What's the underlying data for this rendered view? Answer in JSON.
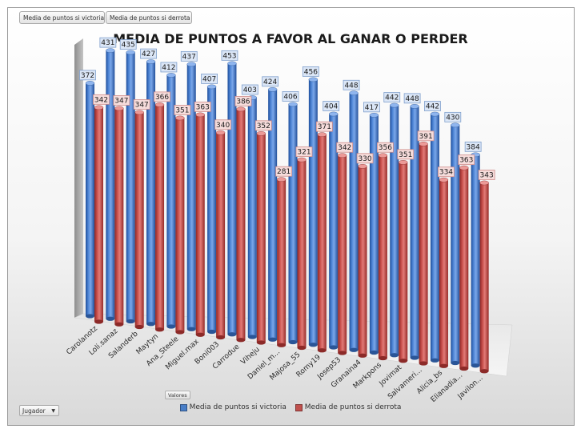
{
  "filter_buttons": [
    "Media de puntos si victoria",
    "Media de puntos si derrota"
  ],
  "axis_field_button": "Valores",
  "row_field_button": "Jugador",
  "colors": {
    "victoria": "#4a7fc8",
    "derrota": "#c0504d"
  },
  "chart_data": {
    "type": "bar",
    "title": "MEDIA DE PUNTOS A FAVOR AL GANAR O PERDER",
    "xlabel": "",
    "ylabel": "",
    "ylim": [
      0,
      460
    ],
    "categories": [
      "Carolanotz",
      "Loli.sanaz",
      "Salanderb",
      "Maytyn",
      "Ana_Steele",
      "Miguel.max",
      "Boni003",
      "Carrodue",
      "Viheju",
      "Daniel_m...",
      "Majosa_55",
      "Romy19",
      "Josep53",
      "Granaina4",
      "Markpons",
      "Jovimat",
      "Salvameri...",
      "Alicia_bs",
      "Elianadia...",
      "Javilon..."
    ],
    "series": [
      {
        "name": "Media de puntos si victoria",
        "values": [
          372,
          431,
          435,
          427,
          412,
          437,
          407,
          453,
          403,
          424,
          406,
          456,
          404,
          448,
          417,
          442,
          448,
          442,
          430,
          384
        ]
      },
      {
        "name": "Media de puntos si derrota",
        "values": [
          342,
          347,
          347,
          366,
          351,
          363,
          340,
          386,
          352,
          281,
          321,
          371,
          342,
          330,
          356,
          351,
          391,
          334,
          363,
          343
        ]
      }
    ]
  }
}
